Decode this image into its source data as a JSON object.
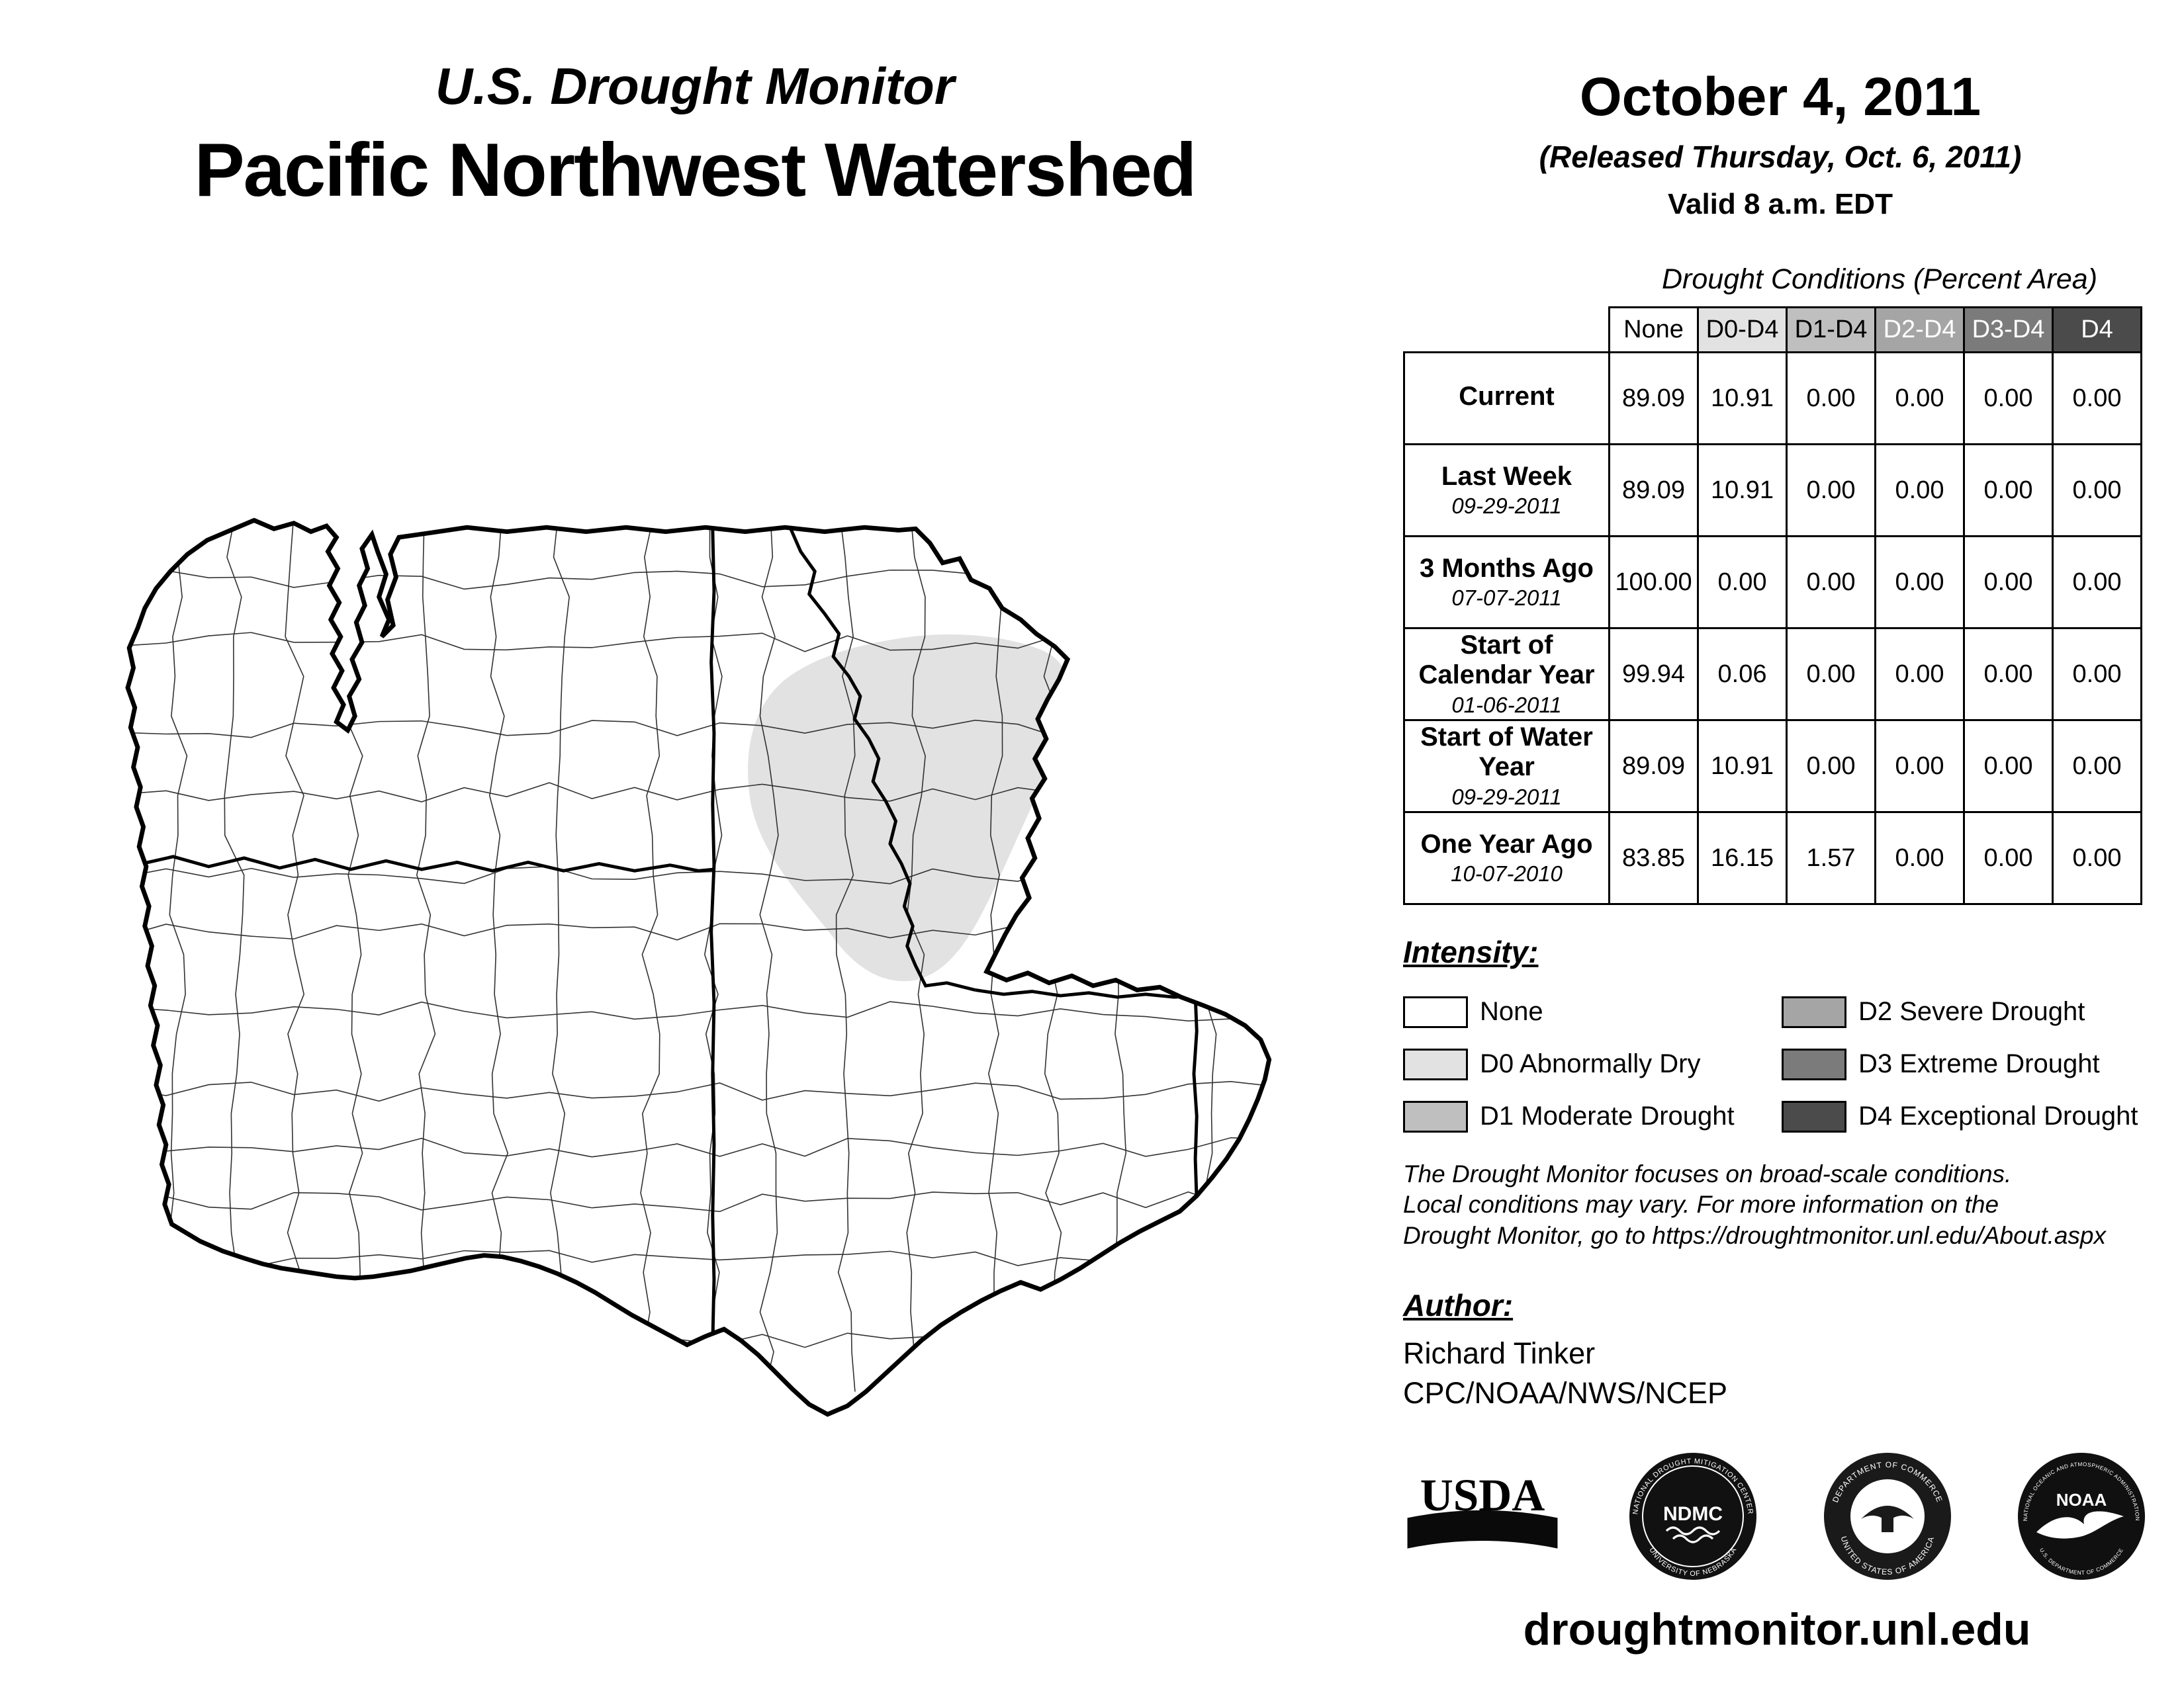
{
  "header": {
    "program_title": "U.S. Drought Monitor",
    "region_title": "Pacific Northwest Watershed",
    "date": "October 4, 2011",
    "released": "(Released Thursday, Oct. 6, 2011)",
    "valid": "Valid 8 a.m. EDT"
  },
  "table": {
    "title": "Drought Conditions (Percent Area)",
    "columns": [
      "None",
      "D0-D4",
      "D1-D4",
      "D2-D4",
      "D3-D4",
      "D4"
    ],
    "rows": [
      {
        "label": "Current",
        "date": "",
        "values": [
          "89.09",
          "10.91",
          "0.00",
          "0.00",
          "0.00",
          "0.00"
        ]
      },
      {
        "label": "Last Week",
        "date": "09-29-2011",
        "values": [
          "89.09",
          "10.91",
          "0.00",
          "0.00",
          "0.00",
          "0.00"
        ]
      },
      {
        "label": "3 Months Ago",
        "date": "07-07-2011",
        "values": [
          "100.00",
          "0.00",
          "0.00",
          "0.00",
          "0.00",
          "0.00"
        ]
      },
      {
        "label": "Start of Calendar Year",
        "date": "01-06-2011",
        "values": [
          "99.94",
          "0.06",
          "0.00",
          "0.00",
          "0.00",
          "0.00"
        ]
      },
      {
        "label": "Start of Water Year",
        "date": "09-29-2011",
        "values": [
          "89.09",
          "10.91",
          "0.00",
          "0.00",
          "0.00",
          "0.00"
        ]
      },
      {
        "label": "One Year Ago",
        "date": "10-07-2010",
        "values": [
          "83.85",
          "16.15",
          "1.57",
          "0.00",
          "0.00",
          "0.00"
        ]
      }
    ]
  },
  "legend": {
    "title": "Intensity:",
    "items": [
      {
        "label": "None",
        "color": "#ffffff"
      },
      {
        "label": "D0 Abnormally Dry",
        "color": "#e2e2e2"
      },
      {
        "label": "D1 Moderate Drought",
        "color": "#bfbfbf"
      },
      {
        "label": "D2 Severe Drought",
        "color": "#a5a5a5"
      },
      {
        "label": "D3 Extreme Drought",
        "color": "#7b7b7b"
      },
      {
        "label": "D4 Exceptional Drought",
        "color": "#4b4b4b"
      }
    ]
  },
  "notes": {
    "line1": "The Drought Monitor focuses on broad-scale conditions.",
    "line2": "Local conditions may vary. For more information on the",
    "line3": "Drought Monitor, go to https://droughtmonitor.unl.edu/About.aspx"
  },
  "author": {
    "title": "Author:",
    "name": "Richard Tinker",
    "org": "CPC/NOAA/NWS/NCEP"
  },
  "footer": {
    "url": "droughtmonitor.unl.edu"
  },
  "logos": {
    "usda": {
      "text": "USDA"
    },
    "ndmc": {
      "center": "NDMC",
      "top": "NATIONAL DROUGHT MITIGATION CENTER",
      "bottom": "UNIVERSITY OF NEBRASKA"
    },
    "doc": {
      "top": "DEPARTMENT OF COMMERCE",
      "bottom": "UNITED STATES OF AMERICA"
    },
    "noaa": {
      "center": "NOAA",
      "top": "NATIONAL OCEANIC AND ATMOSPHERIC ADMINISTRATION",
      "bottom": "U.S. DEPARTMENT OF COMMERCE"
    }
  },
  "map": {
    "region": "Pacific Northwest Watershed",
    "d0_fill": "#e2e2e2"
  }
}
